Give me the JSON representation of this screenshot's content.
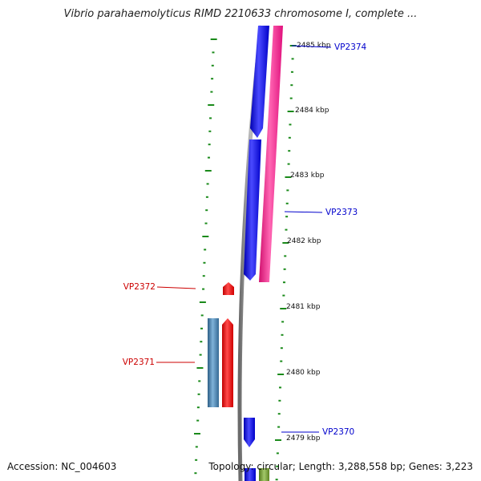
{
  "title": "Vibrio parahaemolyticus RIMD 2210633 chromosome I, complete ...",
  "footer": {
    "accession": "Accession: NC_004603",
    "summary": "Topology: circular; Length: 3,288,558 bp; Genes: 3,223"
  },
  "colors": {
    "background": "#ffffff",
    "backbone": "#808080",
    "tick": "#1a8a1a",
    "forward_cds": "#0000ff",
    "reverse_cds": "#ff0000",
    "pink_feature": "#ff1493",
    "steel_feature": "#4682b4",
    "olive_feature": "#6b8e23",
    "forward_label": "#0000cc",
    "reverse_label": "#cc0000"
  },
  "scale": {
    "unit": "kbp",
    "labels": [
      "2485 kbp",
      "2484 kbp",
      "2483 kbp",
      "2482 kbp",
      "2481 kbp",
      "2480 kbp",
      "2479 kbp"
    ]
  },
  "genes": [
    {
      "name": "VP2374",
      "strand": "forward",
      "color": "#0000ff"
    },
    {
      "name": "VP2373",
      "strand": "forward",
      "color": "#0000ff"
    },
    {
      "name": "VP2372",
      "strand": "reverse",
      "color": "#ff0000"
    },
    {
      "name": "VP2371",
      "strand": "reverse",
      "color": "#ff0000"
    },
    {
      "name": "VP2370",
      "strand": "forward",
      "color": "#0000ff"
    }
  ]
}
